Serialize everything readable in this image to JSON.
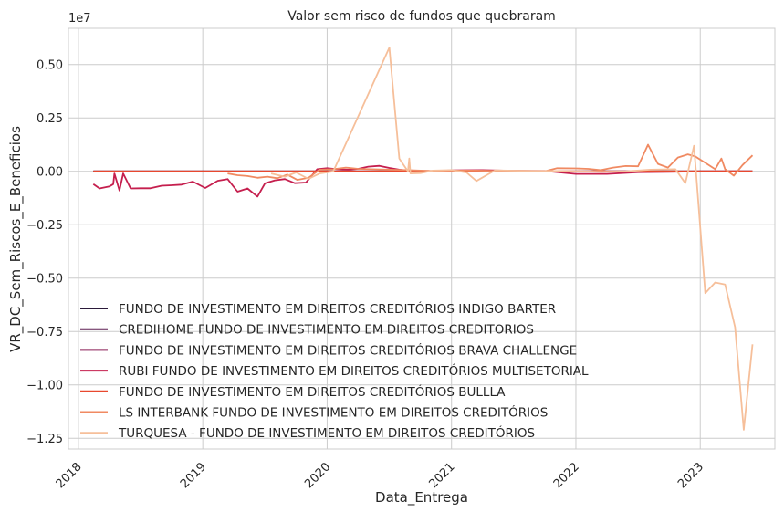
{
  "chart_data": {
    "type": "line",
    "title": "Valor sem risco de fundos que quebraram",
    "xlabel": "Data_Entrega",
    "ylabel": "VR_DC_Sem_Riscos_E_Beneficios",
    "scale_note": "1e7",
    "xlim": [
      2017.92,
      2023.6
    ],
    "ylim": [
      -1.3,
      0.67
    ],
    "x_ticks": [
      2018,
      2019,
      2020,
      2021,
      2022,
      2023
    ],
    "x_tick_labels": [
      "2018",
      "2019",
      "2020",
      "2021",
      "2022",
      "2023"
    ],
    "y_ticks": [
      0.5,
      0.25,
      0,
      -0.25,
      -0.5,
      -0.75,
      -1.0,
      -1.25
    ],
    "y_tick_labels": [
      "0.50",
      "0.25",
      "0.00",
      "−0.25",
      "−0.50",
      "−0.75",
      "−1.00",
      "−1.25"
    ],
    "grid": true,
    "legend_position": "lower-left",
    "series": [
      {
        "name": "FUNDO DE INVESTIMENTO EM DIREITOS CREDITÓRIOS INDIGO BARTER",
        "color": "#2b1a3a",
        "x": [
          2018.12,
          2019.0,
          2020.0,
          2021.0,
          2022.0,
          2023.0,
          2023.42
        ],
        "y": [
          0,
          0,
          0,
          0,
          0,
          0,
          0
        ]
      },
      {
        "name": "CREDIHOME FUNDO DE INVESTIMENTO EM DIREITOS CREDITORIOS",
        "color": "#5e1f52",
        "x": [
          2018.12,
          2019.0,
          2020.0,
          2021.0,
          2022.0,
          2023.0,
          2023.42
        ],
        "y": [
          0,
          0,
          0,
          0,
          0,
          0,
          0
        ]
      },
      {
        "name": "FUNDO DE INVESTIMENTO EM DIREITOS CREDITÓRIOS BRAVA CHALLENGE",
        "color": "#8a1e56",
        "x": [
          2018.12,
          2019.0,
          2020.0,
          2021.0,
          2022.0,
          2023.0,
          2023.42
        ],
        "y": [
          0,
          0,
          0,
          0,
          0,
          0,
          0
        ]
      },
      {
        "name": "RUBI FUNDO DE INVESTIMENTO EM DIREITOS CREDITÓRIOS MULTISETORIAL",
        "color": "#c51f4e",
        "x": [
          2018.12,
          2018.17,
          2018.25,
          2018.28,
          2018.29,
          2018.33,
          2018.36,
          2018.42,
          2018.5,
          2018.58,
          2018.67,
          2018.75,
          2018.83,
          2018.92,
          2019.02,
          2019.12,
          2019.2,
          2019.28,
          2019.36,
          2019.44,
          2019.5,
          2019.58,
          2019.66,
          2019.74,
          2019.83,
          2019.92,
          2020.0,
          2020.08,
          2020.17,
          2020.25,
          2020.33,
          2020.42,
          2020.5,
          2020.58,
          2020.67,
          2020.75,
          2020.83,
          2020.92,
          2021.0,
          2021.25,
          2021.5,
          2021.75,
          2022.0,
          2022.25,
          2022.5,
          2022.75,
          2023.0,
          2023.25,
          2023.42
        ],
        "y": [
          -0.06,
          -0.08,
          -0.07,
          -0.06,
          -0.01,
          -0.09,
          -0.01,
          -0.08,
          -0.079,
          -0.079,
          -0.067,
          -0.065,
          -0.062,
          -0.048,
          -0.078,
          -0.044,
          -0.036,
          -0.095,
          -0.08,
          -0.118,
          -0.056,
          -0.042,
          -0.036,
          -0.055,
          -0.052,
          0.01,
          0.015,
          0.01,
          0.008,
          0.012,
          0.022,
          0.026,
          0.016,
          0.008,
          0.002,
          -0.002,
          0.001,
          0.003,
          0.005,
          0.006,
          0.003,
          0.002,
          -0.012,
          -0.012,
          -0.004,
          -0.002,
          0,
          0,
          0
        ]
      },
      {
        "name": "FUNDO DE INVESTIMENTO EM DIREITOS CREDITÓRIOS BULLLA",
        "color": "#e8482e",
        "x": [
          2018.12,
          2019.0,
          2020.0,
          2021.0,
          2022.0,
          2023.0,
          2023.42
        ],
        "y": [
          0,
          0,
          0,
          0,
          0,
          0,
          0
        ]
      },
      {
        "name": "LS INTERBANK FUNDO DE INVESTIMENTO EM DIREITOS CREDITÓRIOS",
        "color": "#f08a62",
        "x": [
          2019.2,
          2019.28,
          2019.36,
          2019.44,
          2019.52,
          2019.6,
          2019.68,
          2019.76,
          2019.85,
          2019.94,
          2020.05,
          2020.15,
          2020.25,
          2020.35,
          2020.5,
          2020.65,
          2020.75,
          2020.85,
          2021.0,
          2021.2,
          2021.35,
          2021.55,
          2021.75,
          2021.85,
          2022.0,
          2022.1,
          2022.2,
          2022.3,
          2022.4,
          2022.5,
          2022.58,
          2022.66,
          2022.74,
          2022.82,
          2022.9,
          2022.96,
          2023.04,
          2023.12,
          2023.17,
          2023.2,
          2023.27,
          2023.34,
          2023.42
        ],
        "y": [
          -0.01,
          -0.018,
          -0.022,
          -0.03,
          -0.025,
          -0.032,
          -0.015,
          -0.04,
          -0.03,
          0.008,
          0.01,
          0.018,
          0.012,
          0.01,
          0.008,
          0.006,
          0.004,
          0.002,
          0.004,
          0.004,
          0.002,
          0.003,
          0.001,
          0.015,
          0.014,
          0.012,
          0.006,
          0.018,
          0.025,
          0.024,
          0.125,
          0.035,
          0.018,
          0.065,
          0.08,
          0.07,
          0.04,
          0.01,
          0.06,
          0.01,
          -0.02,
          0.03,
          0.075
        ]
      },
      {
        "name": "TURQUESA - FUNDO DE INVESTIMENTO EM DIREITOS CREDITÓRIOS",
        "color": "#f6bf9a",
        "x": [
          2019.55,
          2019.66,
          2019.75,
          2019.85,
          2019.94,
          2020.05,
          2020.5,
          2020.58,
          2020.65,
          2020.66,
          2020.67,
          2020.75,
          2020.85,
          2021.0,
          2021.12,
          2021.2,
          2021.35,
          2021.55,
          2021.75,
          2022.0,
          2022.2,
          2022.4,
          2022.6,
          2022.8,
          2022.88,
          2022.95,
          2023.04,
          2023.12,
          2023.2,
          2023.28,
          2023.35,
          2023.42
        ],
        "y": [
          -0.01,
          -0.025,
          -0.005,
          -0.035,
          -0.01,
          0.0,
          0.58,
          0.06,
          0.0,
          0.06,
          -0.01,
          -0.008,
          0.004,
          0.006,
          -0.005,
          -0.045,
          0.005,
          0.003,
          0.002,
          0.001,
          -0.002,
          0.0,
          0.008,
          0.01,
          -0.055,
          0.12,
          -0.57,
          -0.52,
          -0.53,
          -0.73,
          -1.21,
          -0.81
        ]
      }
    ]
  }
}
